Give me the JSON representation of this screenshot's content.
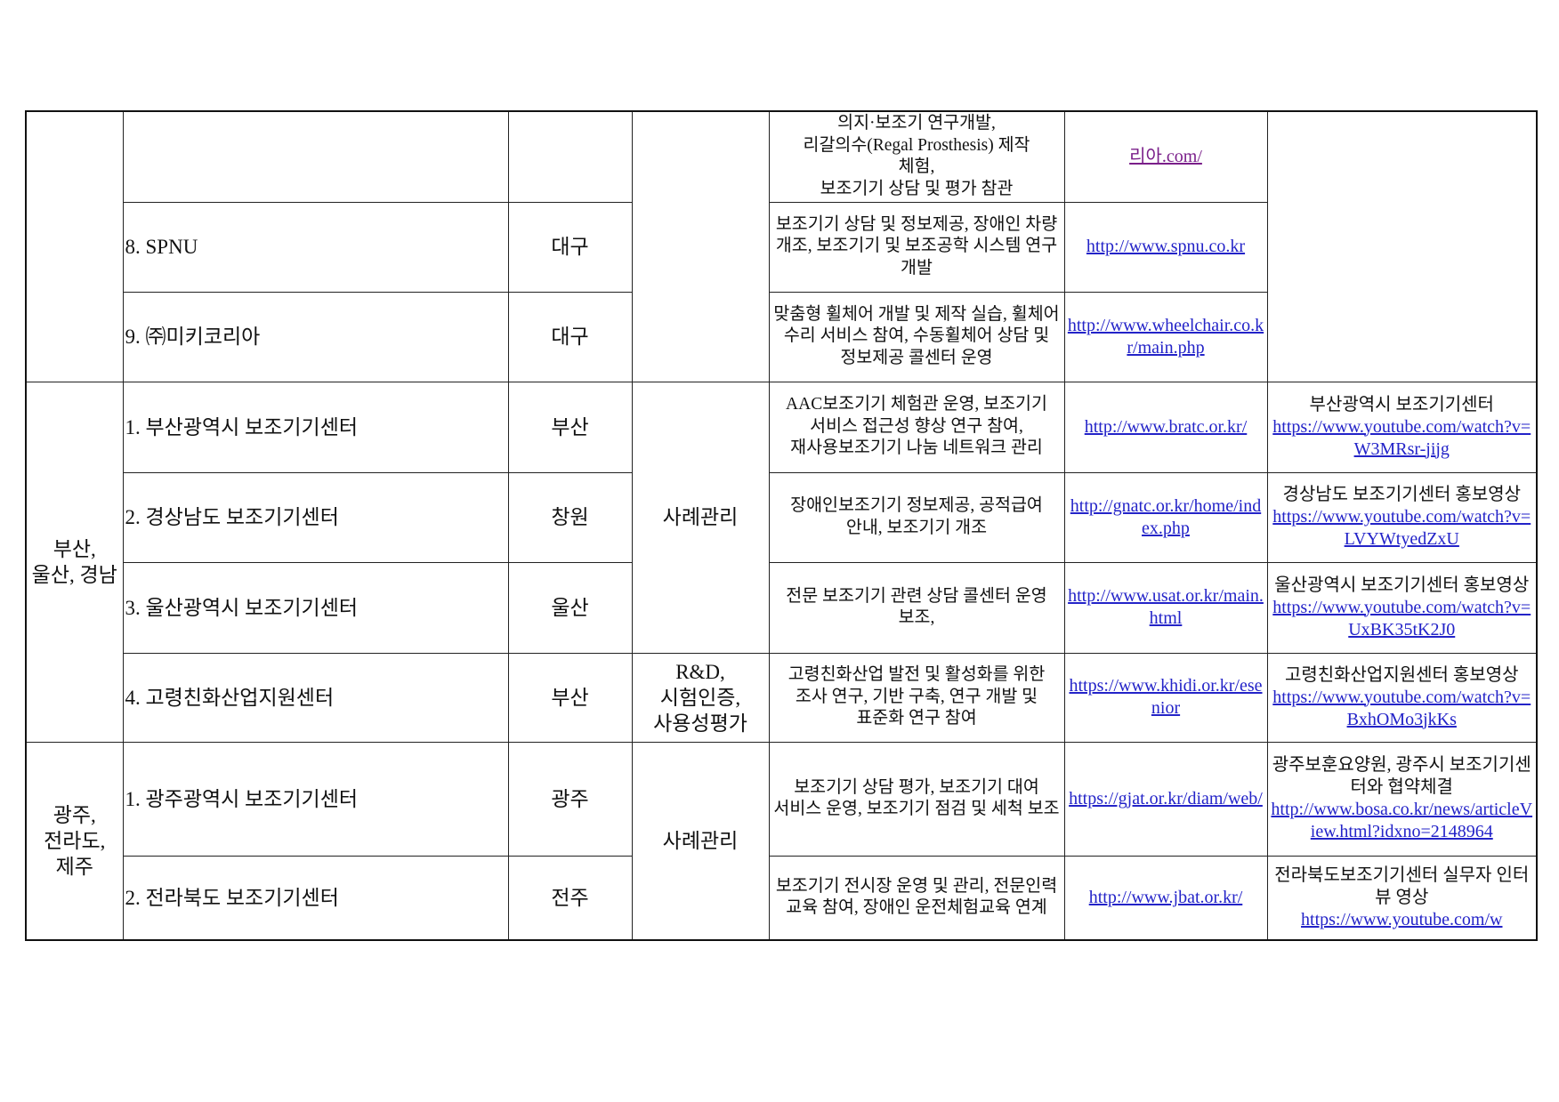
{
  "table": {
    "rows": [
      {
        "name": "",
        "city": "",
        "desc": "의지·보조기 연구개발,\n리갈의수(Regal Prosthesis) 제작 체험,\n보조기기 상담 및 평가 참관",
        "site": "리아.com/",
        "media": ""
      },
      {
        "name": "8. SPNU",
        "city": "대구",
        "desc": "보조기기 상담 및 정보제공, 장애인 차량 개조, 보조기기 및 보조공학 시스템 연구 개발",
        "site": "http://www.spnu.co.kr",
        "media": ""
      },
      {
        "name": "9. ㈜미키코리아",
        "city": "대구",
        "desc": "맞춤형 휠체어 개발 및 제작 실습, 휠체어 수리 서비스 참여, 수동휠체어 상담 및 정보제공 콜센터 운영",
        "site": "http://www.wheelchair.co.kr/main.php",
        "media": ""
      },
      {
        "name": "1. 부산광역시 보조기기센터",
        "city": "부산",
        "desc": "AAC보조기기 체험관 운영, 보조기기 서비스 접근성 향상 연구 참여, 재사용보조기기 나눔 네트워크 관리",
        "site": "http://www.bratc.or.kr/",
        "media_title": "부산광역시 보조기기센터",
        "media": "https://www.youtube.com/watch?v=W3MRsr-jijg"
      },
      {
        "name": "2. 경상남도 보조기기센터",
        "city": "창원",
        "desc": "장애인보조기기 정보제공, 공적급여 안내, 보조기기 개조",
        "site": "http://gnatc.or.kr/home/index.php",
        "media_title": "경상남도 보조기기센터 홍보영상",
        "media": "https://www.youtube.com/watch?v=LVYWtyedZxU"
      },
      {
        "name": "3. 울산광역시 보조기기센터",
        "city": "울산",
        "desc": "전문 보조기기 관련 상담 콜센터 운영 보조,",
        "site": "http://www.usat.or.kr/main.html",
        "media_title": "울산광역시 보조기기센터 홍보영상",
        "media": "https://www.youtube.com/watch?v=UxBK35tK2J0"
      },
      {
        "name": "4. 고령친화산업지원센터",
        "city": "부산",
        "desc": "고령친화산업 발전 및 활성화를 위한 조사 연구, 기반 구축, 연구 개발 및 표준화 연구 참여",
        "site": "https://www.khidi.or.kr/esenior",
        "media_title": "고령친화산업지원센터 홍보영상",
        "media": "https://www.youtube.com/watch?v=BxhOMo3jkKs"
      },
      {
        "name": "1. 광주광역시 보조기기센터",
        "city": "광주",
        "desc": "보조기기 상담 평가, 보조기기 대여 서비스 운영, 보조기기 점검 및 세척 보조",
        "site": "https://gjat.or.kr/diam/web/",
        "media_title": "광주보훈요양원, 광주시 보조기기센터와 협약체결",
        "media": "http://www.bosa.co.kr/news/articleView.html?idxno=2148964"
      },
      {
        "name": "2. 전라북도 보조기기센터",
        "city": "전주",
        "desc": "보조기기 전시장 운영 및 관리, 전문인력 교육 참여, 장애인 운전체험교육 연계",
        "site": "http://www.jbat.or.kr/",
        "media_title": "전라북도보조기기센터 실무자 인터뷰 영상",
        "media": "https://www.youtube.com/w"
      }
    ],
    "regions": {
      "busan": "부산, 울산, 경남",
      "gwangju": "광주, 전라도, 제주"
    },
    "types": {
      "case_mgmt": "사례관리",
      "rnd": "R&D, 시험인증, 사용성평가",
      "case_mgmt2": "사례관리"
    },
    "colors": {
      "link": "#2323c8",
      "visited_link": "#7a1f8a",
      "border": "#222222"
    }
  }
}
